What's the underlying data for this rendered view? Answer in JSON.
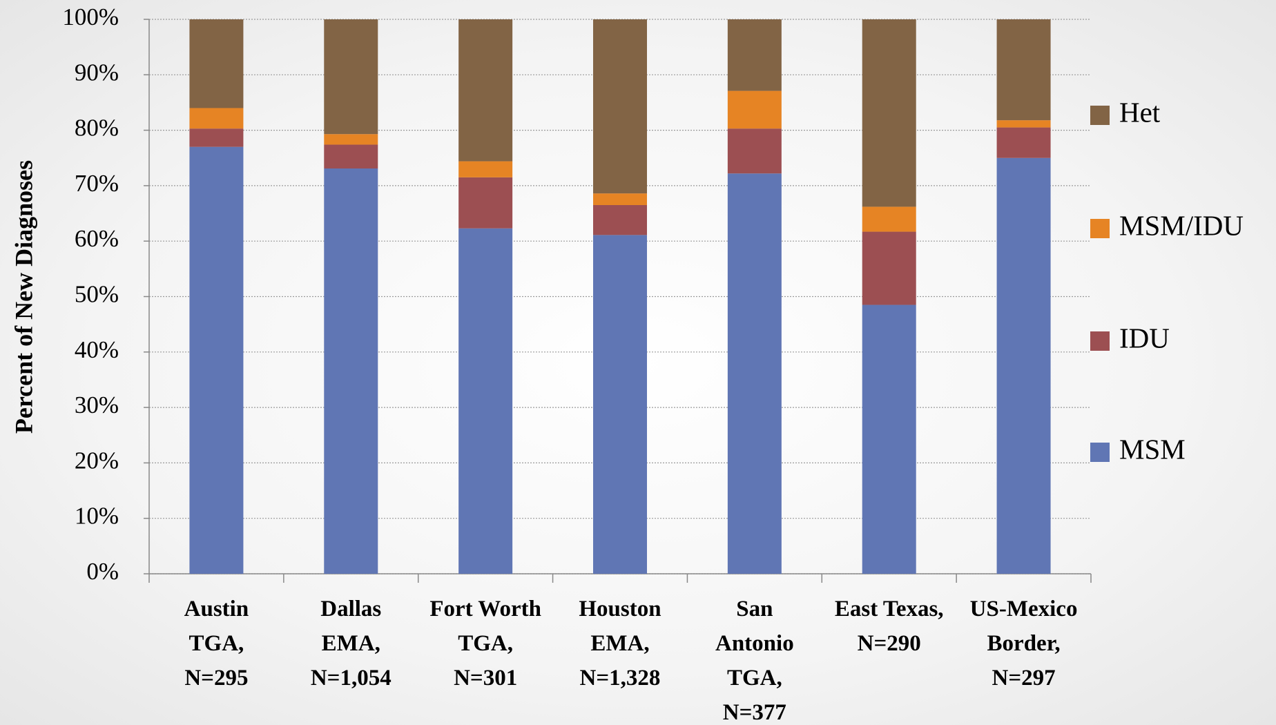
{
  "chart_data": {
    "type": "stacked-bar",
    "y_label": "Percent of New Diagnoses",
    "categories": [
      [
        "Austin",
        "TGA,",
        "N=295"
      ],
      [
        "Dallas",
        "EMA,",
        "N=1,054"
      ],
      [
        "Fort Worth",
        "TGA,",
        "N=301"
      ],
      [
        "Houston",
        "EMA,",
        "N=1,328"
      ],
      [
        "San",
        "Antonio",
        "TGA,",
        "N=377"
      ],
      [
        "East Texas,",
        "N=290"
      ],
      [
        "US-Mexico",
        "Border,",
        "N=297"
      ]
    ],
    "series": [
      {
        "name": "MSM",
        "color": "#6076b4",
        "values": [
          77.0,
          73.1,
          62.3,
          61.1,
          72.2,
          48.5,
          75.0
        ]
      },
      {
        "name": "IDU",
        "color": "#9c4f52",
        "values": [
          3.3,
          4.3,
          9.2,
          5.4,
          8.1,
          13.2,
          5.5
        ]
      },
      {
        "name": "MSM/IDU",
        "color": "#e68424",
        "values": [
          3.7,
          1.9,
          2.9,
          2.1,
          6.8,
          4.5,
          1.3
        ]
      },
      {
        "name": "Het",
        "color": "#826445",
        "values": [
          16.0,
          20.7,
          25.6,
          31.4,
          12.9,
          33.8,
          18.2
        ]
      }
    ],
    "ylim": [
      0,
      100
    ],
    "yticks": [
      {
        "value": 0,
        "label": "0%"
      },
      {
        "value": 10,
        "label": "10%"
      },
      {
        "value": 20,
        "label": "20%"
      },
      {
        "value": 30,
        "label": "30%"
      },
      {
        "value": 40,
        "label": "40%"
      },
      {
        "value": 50,
        "label": "50%"
      },
      {
        "value": 60,
        "label": "60%"
      },
      {
        "value": 70,
        "label": "70%"
      },
      {
        "value": 80,
        "label": "80%"
      },
      {
        "value": 90,
        "label": "90%"
      },
      {
        "value": 100,
        "label": "100%"
      }
    ],
    "grid": true,
    "legend": "right"
  }
}
